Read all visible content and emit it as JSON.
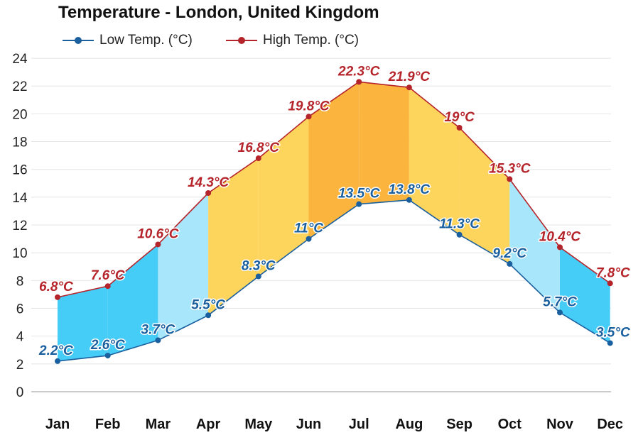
{
  "colors": {
    "low_line": "#1a5f9e",
    "high_line": "#b5242a",
    "low_label": "#1a5f9e",
    "high_label": "#b5242a",
    "cold_fill": "#45cdf7",
    "cool_fill": "#a8e6fb",
    "mild_fill": "#fdd45c",
    "warm_fill": "#fbb53e",
    "grid": "#e4e4e4"
  },
  "chart_data": {
    "type": "area",
    "title": "Temperature - London, United Kingdom",
    "xlabel": "",
    "ylabel": "",
    "categories": [
      "Jan",
      "Feb",
      "Mar",
      "Apr",
      "May",
      "Jun",
      "Jul",
      "Aug",
      "Sep",
      "Oct",
      "Nov",
      "Dec"
    ],
    "series": [
      {
        "name": "Low Temp. (°C)",
        "values": [
          2.2,
          2.6,
          3.7,
          5.5,
          8.3,
          11,
          13.5,
          13.8,
          11.3,
          9.2,
          5.7,
          3.5
        ],
        "labels": [
          "2.2°C",
          "2.6°C",
          "3.7°C",
          "5.5°C",
          "8.3°C",
          "11°C",
          "13.5°C",
          "13.8°C",
          "11.3°C",
          "9.2°C",
          "5.7°C",
          "3.5°C"
        ]
      },
      {
        "name": "High Temp. (°C)",
        "values": [
          6.8,
          7.6,
          10.6,
          14.3,
          16.8,
          19.8,
          22.3,
          21.9,
          19,
          15.3,
          10.4,
          7.8
        ],
        "labels": [
          "6.8°C",
          "7.6°C",
          "10.6°C",
          "14.3°C",
          "16.8°C",
          "19.8°C",
          "22.3°C",
          "21.9°C",
          "19°C",
          "15.3°C",
          "10.4°C",
          "7.8°C"
        ]
      }
    ],
    "band_fills": [
      "cold",
      "cold",
      "cool",
      "mild",
      "mild",
      "warm",
      "warm",
      "mild",
      "mild",
      "cool",
      "cold"
    ],
    "ylim": [
      0,
      24
    ],
    "yticks": [
      0,
      2,
      4,
      6,
      8,
      10,
      12,
      14,
      16,
      18,
      20,
      22,
      24
    ],
    "grid": true,
    "legend": "top-left"
  }
}
